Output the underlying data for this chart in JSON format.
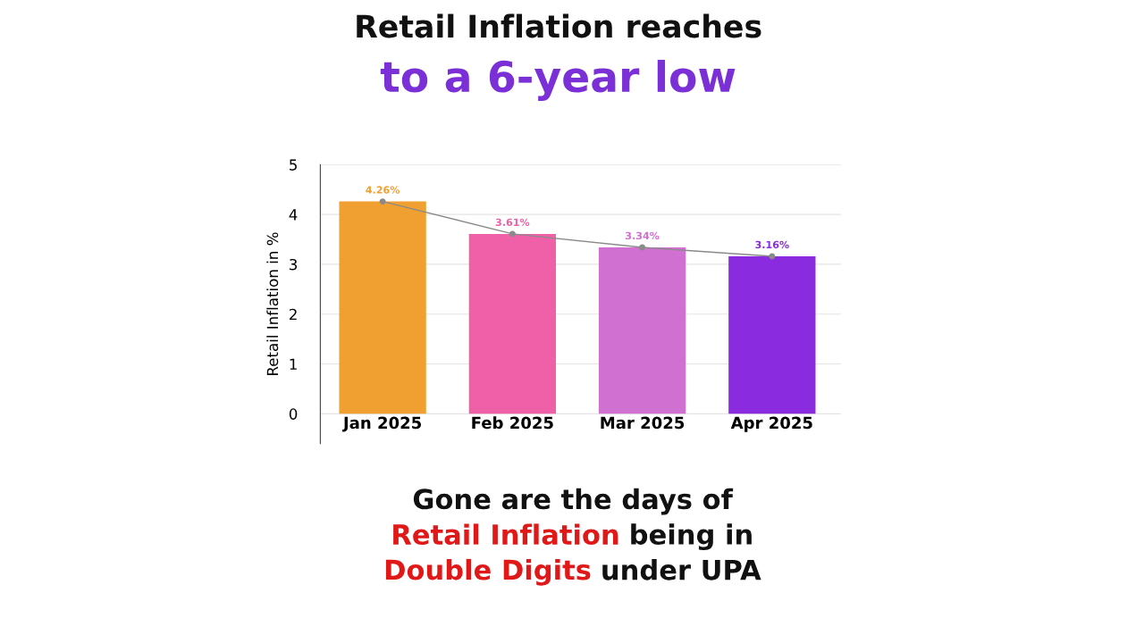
{
  "chart_data": {
    "type": "bar",
    "title": "Retail Inflation reaches",
    "subtitle": "to a 6-year low",
    "ylabel": "Retail Inflation in %",
    "categories": [
      "Jan 2025",
      "Feb 2025",
      "Mar 2025",
      "Apr 2025"
    ],
    "series": [
      {
        "colors": [
          "#f0a030",
          "#f060a8",
          "#d070d0",
          "#8a2be0"
        ],
        "values": [
          4.26,
          3.61,
          3.34,
          3.16
        ]
      },
      {
        "type": "line",
        "color": "#8a8a8a",
        "marker": "circle",
        "values": [
          4.26,
          3.61,
          3.34,
          3.16
        ],
        "value_labels": [
          "4.26%",
          "3.61%",
          "3.34%",
          "3.16%"
        ]
      }
    ],
    "ylim": [
      -0.6,
      5
    ],
    "yticks": [
      0,
      1,
      2,
      3,
      4,
      5
    ],
    "grid": "y",
    "legend": false,
    "annotations": [
      "Gone are the days of",
      "Retail Inflation",
      "being in",
      "Double Digits",
      "under UPA"
    ]
  }
}
